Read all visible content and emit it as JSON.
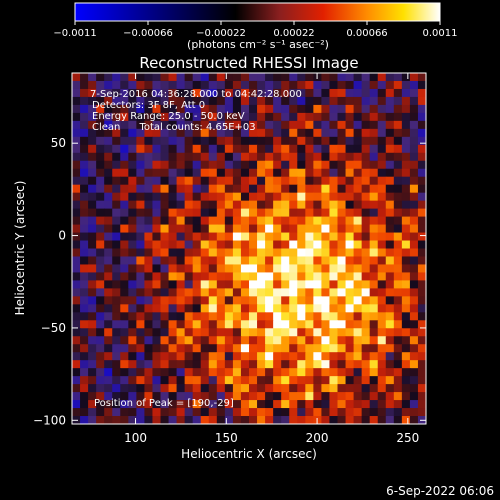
{
  "chart_data": {
    "type": "heatmap",
    "title": "Reconstructed RHESSI Image",
    "xlabel": "Heliocentric X (arcsec)",
    "ylabel": "Heliocentric Y (arcsec)",
    "xlim": [
      65,
      260
    ],
    "ylim": [
      -102,
      88
    ],
    "x_ticks": [
      100,
      150,
      200,
      250
    ],
    "y_ticks": [
      -100,
      -50,
      0,
      50
    ],
    "x_tick_labels": [
      "100",
      "150",
      "200",
      "250"
    ],
    "y_tick_labels": [
      "−100",
      "−50",
      "0",
      "50"
    ],
    "colorbar": {
      "range": [
        -0.0011,
        0.0011
      ],
      "ticks": [
        -0.0011,
        -0.00066,
        -0.00022,
        0.00022,
        0.00066,
        0.0011
      ],
      "tick_labels": [
        "−0.0011",
        "−0.00066",
        "−0.00022",
        "0.00022",
        "0.00066",
        "0.0011"
      ],
      "unit_label": "(photons cm⁻² s⁻¹ asec⁻²)",
      "colors": [
        "#0000ff",
        "#000000",
        "#8a1f1f",
        "#e22000",
        "#ff8c00",
        "#ffe000",
        "#ffffff"
      ]
    },
    "annotations": {
      "time": "7-Sep-2016 04:36:28.000 to 04:42:28.000",
      "detectors": "Detectors: 3F 8F, Att 0",
      "energy": "Energy Range: 25.0 - 50.0 keV",
      "clean": "Clean      Total counts: 4.65E+03",
      "peak": "Position of Peak = [190,-29]"
    },
    "peak_position": [
      190,
      -29
    ],
    "timestamp": "6-Sep-2022 06:06"
  }
}
